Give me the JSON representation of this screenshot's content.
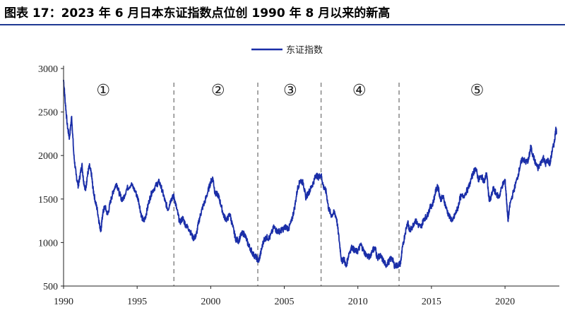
{
  "title": "图表 17：2023 年 6 月日本东证指数点位创 1990 年 8 月以来的新高",
  "colors": {
    "series": "#1a2ea8",
    "divider": "#888888",
    "rule": "#1f3a93"
  },
  "chart_data": {
    "type": "line",
    "title": "图表 17：2023 年 6 月日本东证指数点位创 1990 年 8 月以来的新高",
    "xlabel": "",
    "ylabel": "",
    "xlim": [
      1990,
      2023.5
    ],
    "ylim": [
      500,
      3000
    ],
    "x_ticks": [
      "1990",
      "1995",
      "2000",
      "2005",
      "2010",
      "2015",
      "2020"
    ],
    "y_ticks": [
      "3000",
      "2500",
      "2000",
      "1500",
      "1000",
      "500"
    ],
    "legend": {
      "position": "top-center",
      "entries": [
        "东证指数"
      ]
    },
    "grid": false,
    "dividers": [
      1997.5,
      2003.2,
      2007.5,
      2012.8
    ],
    "periods": [
      {
        "label": "①",
        "x": 1992.7
      },
      {
        "label": "②",
        "x": 2000.5
      },
      {
        "label": "③",
        "x": 2005.4
      },
      {
        "label": "④",
        "x": 2010.1
      },
      {
        "label": "⑤",
        "x": 2018.1
      }
    ],
    "series": [
      {
        "name": "东证指数",
        "points": [
          [
            1990.0,
            2870
          ],
          [
            1990.1,
            2650
          ],
          [
            1990.25,
            2350
          ],
          [
            1990.4,
            2200
          ],
          [
            1990.55,
            2450
          ],
          [
            1990.7,
            2000
          ],
          [
            1990.85,
            1780
          ],
          [
            1991.0,
            1650
          ],
          [
            1991.1,
            1750
          ],
          [
            1991.25,
            1900
          ],
          [
            1991.35,
            1720
          ],
          [
            1991.5,
            1600
          ],
          [
            1991.6,
            1750
          ],
          [
            1991.75,
            1880
          ],
          [
            1991.9,
            1780
          ],
          [
            1992.0,
            1620
          ],
          [
            1992.15,
            1480
          ],
          [
            1992.3,
            1370
          ],
          [
            1992.45,
            1200
          ],
          [
            1992.55,
            1140
          ],
          [
            1992.65,
            1320
          ],
          [
            1992.8,
            1420
          ],
          [
            1993.0,
            1320
          ],
          [
            1993.2,
            1480
          ],
          [
            1993.4,
            1600
          ],
          [
            1993.6,
            1680
          ],
          [
            1993.8,
            1560
          ],
          [
            1994.0,
            1480
          ],
          [
            1994.3,
            1620
          ],
          [
            1994.6,
            1670
          ],
          [
            1994.9,
            1580
          ],
          [
            1995.1,
            1480
          ],
          [
            1995.3,
            1300
          ],
          [
            1995.45,
            1240
          ],
          [
            1995.6,
            1320
          ],
          [
            1995.8,
            1470
          ],
          [
            1996.0,
            1580
          ],
          [
            1996.3,
            1660
          ],
          [
            1996.5,
            1700
          ],
          [
            1996.7,
            1600
          ],
          [
            1996.9,
            1470
          ],
          [
            1997.1,
            1380
          ],
          [
            1997.3,
            1500
          ],
          [
            1997.5,
            1530
          ],
          [
            1997.7,
            1380
          ],
          [
            1997.9,
            1230
          ],
          [
            1998.1,
            1280
          ],
          [
            1998.3,
            1200
          ],
          [
            1998.55,
            1150
          ],
          [
            1998.8,
            1050
          ],
          [
            1999.0,
            1070
          ],
          [
            1999.2,
            1250
          ],
          [
            1999.4,
            1380
          ],
          [
            1999.6,
            1470
          ],
          [
            1999.8,
            1580
          ],
          [
            2000.0,
            1700
          ],
          [
            2000.15,
            1740
          ],
          [
            2000.3,
            1560
          ],
          [
            2000.5,
            1550
          ],
          [
            2000.7,
            1430
          ],
          [
            2000.9,
            1300
          ],
          [
            2001.1,
            1260
          ],
          [
            2001.3,
            1330
          ],
          [
            2001.5,
            1180
          ],
          [
            2001.7,
            1040
          ],
          [
            2001.9,
            1020
          ],
          [
            2002.1,
            1100
          ],
          [
            2002.3,
            1100
          ],
          [
            2002.5,
            1000
          ],
          [
            2002.7,
            930
          ],
          [
            2002.9,
            860
          ],
          [
            2003.1,
            830
          ],
          [
            2003.25,
            780
          ],
          [
            2003.4,
            880
          ],
          [
            2003.6,
            1030
          ],
          [
            2003.8,
            1060
          ],
          [
            2004.0,
            1050
          ],
          [
            2004.3,
            1180
          ],
          [
            2004.5,
            1130
          ],
          [
            2004.7,
            1130
          ],
          [
            2004.9,
            1150
          ],
          [
            2005.1,
            1180
          ],
          [
            2005.3,
            1160
          ],
          [
            2005.5,
            1250
          ],
          [
            2005.7,
            1400
          ],
          [
            2005.9,
            1620
          ],
          [
            2006.1,
            1720
          ],
          [
            2006.3,
            1680
          ],
          [
            2006.45,
            1520
          ],
          [
            2006.6,
            1560
          ],
          [
            2006.8,
            1620
          ],
          [
            2007.0,
            1700
          ],
          [
            2007.15,
            1780
          ],
          [
            2007.3,
            1750
          ],
          [
            2007.5,
            1780
          ],
          [
            2007.65,
            1650
          ],
          [
            2007.85,
            1580
          ],
          [
            2008.0,
            1400
          ],
          [
            2008.2,
            1310
          ],
          [
            2008.4,
            1350
          ],
          [
            2008.55,
            1280
          ],
          [
            2008.75,
            1000
          ],
          [
            2008.9,
            780
          ],
          [
            2009.05,
            820
          ],
          [
            2009.2,
            720
          ],
          [
            2009.4,
            880
          ],
          [
            2009.6,
            950
          ],
          [
            2009.8,
            900
          ],
          [
            2010.0,
            900
          ],
          [
            2010.2,
            980
          ],
          [
            2010.4,
            900
          ],
          [
            2010.6,
            850
          ],
          [
            2010.8,
            830
          ],
          [
            2011.0,
            920
          ],
          [
            2011.2,
            930
          ],
          [
            2011.3,
            820
          ],
          [
            2011.5,
            850
          ],
          [
            2011.7,
            800
          ],
          [
            2011.9,
            740
          ],
          [
            2012.1,
            780
          ],
          [
            2012.3,
            830
          ],
          [
            2012.5,
            730
          ],
          [
            2012.7,
            740
          ],
          [
            2012.9,
            760
          ],
          [
            2013.0,
            900
          ],
          [
            2013.2,
            1100
          ],
          [
            2013.4,
            1250
          ],
          [
            2013.5,
            1130
          ],
          [
            2013.7,
            1180
          ],
          [
            2013.9,
            1260
          ],
          [
            2014.1,
            1200
          ],
          [
            2014.3,
            1180
          ],
          [
            2014.5,
            1280
          ],
          [
            2014.7,
            1300
          ],
          [
            2014.9,
            1400
          ],
          [
            2015.1,
            1450
          ],
          [
            2015.3,
            1600
          ],
          [
            2015.45,
            1650
          ],
          [
            2015.6,
            1500
          ],
          [
            2015.8,
            1520
          ],
          [
            2016.0,
            1400
          ],
          [
            2016.2,
            1300
          ],
          [
            2016.45,
            1250
          ],
          [
            2016.6,
            1320
          ],
          [
            2016.8,
            1400
          ],
          [
            2016.95,
            1520
          ],
          [
            2017.2,
            1540
          ],
          [
            2017.5,
            1620
          ],
          [
            2017.8,
            1780
          ],
          [
            2018.0,
            1860
          ],
          [
            2018.2,
            1720
          ],
          [
            2018.4,
            1760
          ],
          [
            2018.6,
            1700
          ],
          [
            2018.75,
            1800
          ],
          [
            2018.9,
            1520
          ],
          [
            2019.0,
            1480
          ],
          [
            2019.2,
            1620
          ],
          [
            2019.4,
            1560
          ],
          [
            2019.6,
            1520
          ],
          [
            2019.8,
            1650
          ],
          [
            2020.0,
            1720
          ],
          [
            2020.1,
            1500
          ],
          [
            2020.2,
            1250
          ],
          [
            2020.35,
            1450
          ],
          [
            2020.6,
            1600
          ],
          [
            2020.85,
            1750
          ],
          [
            2021.05,
            1900
          ],
          [
            2021.2,
            1970
          ],
          [
            2021.4,
            1920
          ],
          [
            2021.6,
            1950
          ],
          [
            2021.75,
            2100
          ],
          [
            2021.9,
            2000
          ],
          [
            2022.1,
            1900
          ],
          [
            2022.25,
            1850
          ],
          [
            2022.45,
            1920
          ],
          [
            2022.6,
            1980
          ],
          [
            2022.75,
            1900
          ],
          [
            2022.9,
            1950
          ],
          [
            2023.05,
            1900
          ],
          [
            2023.2,
            2050
          ],
          [
            2023.35,
            2150
          ],
          [
            2023.45,
            2300
          ],
          [
            2023.5,
            2280
          ]
        ]
      }
    ]
  }
}
